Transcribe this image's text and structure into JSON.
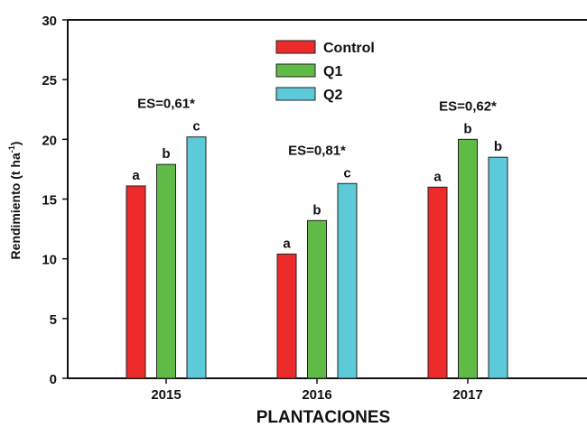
{
  "chart_data": {
    "type": "bar",
    "title": "",
    "xlabel": "PLANTACIONES",
    "ylabel": "Rendimiento (t ha-1)",
    "ylabel_main": "Rendimiento (t ha",
    "ylabel_sup": "-1",
    "ylabel_close": ")",
    "ylim": [
      0,
      30
    ],
    "yticks": [
      0,
      5,
      10,
      15,
      20,
      25,
      30
    ],
    "categories": [
      "2015",
      "2016",
      "2017"
    ],
    "series": [
      {
        "name": "Control",
        "color": "#ee2b2b",
        "values": [
          16.1,
          10.4,
          16.0
        ],
        "letters": [
          "a",
          "a",
          "a"
        ]
      },
      {
        "name": "Q1",
        "color": "#5fbb45",
        "values": [
          17.9,
          13.2,
          20.0
        ],
        "letters": [
          "b",
          "b",
          "b"
        ]
      },
      {
        "name": "Q2",
        "color": "#5ccad8",
        "values": [
          20.2,
          16.3,
          18.5
        ],
        "letters": [
          "c",
          "c",
          "b"
        ]
      }
    ],
    "annotations": [
      "ES=0,61*",
      "ES=0,81*",
      "ES=0,62*"
    ],
    "legend_position": "top-center",
    "grid": false
  }
}
